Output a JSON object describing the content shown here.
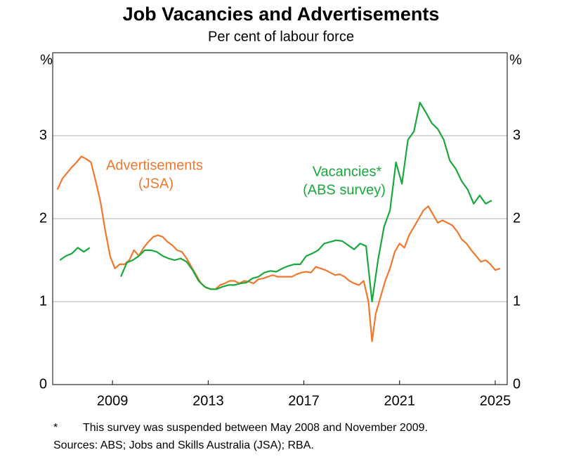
{
  "chart_data": {
    "type": "line",
    "title": "Job Vacancies and Advertisements",
    "subtitle": "Per cent of labour force",
    "y_label": "%",
    "y2_label": "%",
    "xlim": [
      2007,
      2026
    ],
    "xticks": [
      {
        "value": 2009.5,
        "label": "2009"
      },
      {
        "value": 2013.5,
        "label": "2013"
      },
      {
        "value": 2017.5,
        "label": "2017"
      },
      {
        "value": 2021.5,
        "label": "2021"
      },
      {
        "value": 2025.5,
        "label": "2025"
      }
    ],
    "ylim": [
      0,
      4
    ],
    "yticks": [
      0,
      1,
      2,
      3
    ],
    "y2lim": [
      0,
      4
    ],
    "y2ticks": [
      0,
      1,
      2,
      3
    ],
    "grid": true,
    "series": [
      {
        "name": "Advertisements",
        "color": "#f0782d",
        "x": [
          2007.2,
          2007.4,
          2007.6,
          2007.8,
          2008.0,
          2008.2,
          2008.4,
          2008.6,
          2008.8,
          2009.0,
          2009.2,
          2009.4,
          2009.6,
          2009.8,
          2010.0,
          2010.2,
          2010.4,
          2010.6,
          2010.8,
          2011.0,
          2011.2,
          2011.4,
          2011.6,
          2011.8,
          2012.0,
          2012.2,
          2012.4,
          2012.6,
          2012.8,
          2013.0,
          2013.2,
          2013.4,
          2013.6,
          2013.8,
          2014.0,
          2014.2,
          2014.4,
          2014.6,
          2014.8,
          2015.0,
          2015.2,
          2015.4,
          2015.6,
          2015.8,
          2016.0,
          2016.2,
          2016.4,
          2016.6,
          2016.8,
          2017.0,
          2017.2,
          2017.4,
          2017.6,
          2017.8,
          2018.0,
          2018.2,
          2018.4,
          2018.6,
          2018.8,
          2019.0,
          2019.2,
          2019.4,
          2019.6,
          2019.8,
          2020.0,
          2020.2,
          2020.35,
          2020.5,
          2020.7,
          2020.9,
          2021.1,
          2021.3,
          2021.5,
          2021.7,
          2021.9,
          2022.1,
          2022.3,
          2022.5,
          2022.7,
          2022.9,
          2023.1,
          2023.3,
          2023.5,
          2023.7,
          2023.9,
          2024.1,
          2024.3,
          2024.5,
          2024.7,
          2024.9,
          2025.1,
          2025.3,
          2025.5,
          2025.7
        ],
        "values": [
          2.35,
          2.48,
          2.55,
          2.62,
          2.68,
          2.75,
          2.72,
          2.68,
          2.45,
          2.2,
          1.85,
          1.55,
          1.4,
          1.45,
          1.45,
          1.5,
          1.62,
          1.55,
          1.65,
          1.72,
          1.78,
          1.8,
          1.78,
          1.72,
          1.68,
          1.62,
          1.6,
          1.52,
          1.42,
          1.32,
          1.22,
          1.17,
          1.15,
          1.15,
          1.2,
          1.22,
          1.25,
          1.25,
          1.22,
          1.25,
          1.24,
          1.22,
          1.27,
          1.28,
          1.3,
          1.32,
          1.3,
          1.3,
          1.3,
          1.3,
          1.33,
          1.35,
          1.36,
          1.35,
          1.42,
          1.4,
          1.38,
          1.35,
          1.32,
          1.33,
          1.3,
          1.25,
          1.22,
          1.2,
          1.25,
          1.0,
          0.52,
          0.85,
          1.05,
          1.25,
          1.4,
          1.6,
          1.7,
          1.65,
          1.8,
          1.9,
          2.0,
          2.1,
          2.15,
          2.05,
          1.95,
          1.98,
          1.95,
          1.92,
          1.85,
          1.75,
          1.7,
          1.62,
          1.55,
          1.48,
          1.5,
          1.45,
          1.38,
          1.4
        ]
      },
      {
        "name": "Vacancies*",
        "color": "#1aa83c",
        "x": [
          2007.3,
          2007.55,
          2007.8,
          2008.05,
          2008.3,
          2008.55,
          2009.2,
          2009.85,
          2010.1,
          2010.35,
          2010.6,
          2010.85,
          2011.1,
          2011.35,
          2011.6,
          2011.85,
          2012.1,
          2012.35,
          2012.6,
          2012.85,
          2013.1,
          2013.35,
          2013.6,
          2013.85,
          2014.1,
          2014.35,
          2014.6,
          2014.85,
          2015.1,
          2015.35,
          2015.6,
          2015.85,
          2016.1,
          2016.35,
          2016.6,
          2016.85,
          2017.1,
          2017.35,
          2017.6,
          2017.85,
          2018.1,
          2018.35,
          2018.6,
          2018.85,
          2019.1,
          2019.35,
          2019.6,
          2019.85,
          2020.1,
          2020.35,
          2020.6,
          2020.85,
          2021.1,
          2021.35,
          2021.6,
          2021.85,
          2022.1,
          2022.35,
          2022.6,
          2022.85,
          2023.1,
          2023.35,
          2023.6,
          2023.85,
          2024.1,
          2024.35,
          2024.6,
          2024.85,
          2025.1,
          2025.35
        ],
        "values": [
          1.5,
          1.55,
          1.58,
          1.65,
          1.6,
          1.65,
          null,
          1.3,
          1.47,
          1.5,
          1.55,
          1.62,
          1.62,
          1.6,
          1.55,
          1.52,
          1.5,
          1.52,
          1.48,
          1.38,
          1.25,
          1.18,
          1.15,
          1.15,
          1.18,
          1.2,
          1.2,
          1.22,
          1.23,
          1.28,
          1.3,
          1.35,
          1.37,
          1.36,
          1.4,
          1.43,
          1.45,
          1.45,
          1.55,
          1.58,
          1.62,
          1.7,
          1.72,
          1.74,
          1.73,
          1.68,
          1.63,
          1.7,
          1.67,
          1.0,
          1.5,
          1.9,
          2.1,
          2.68,
          2.42,
          2.95,
          3.05,
          3.4,
          3.28,
          3.15,
          3.08,
          2.95,
          2.7,
          2.6,
          2.45,
          2.35,
          2.18,
          2.28,
          2.18,
          2.22
        ]
      }
    ],
    "annotations": [
      "Advertisements",
      "(JSA)",
      "Vacancies*",
      "(ABS survey)"
    ],
    "footnote": {
      "marker": "*",
      "text": "This survey was suspended between May 2008 and November 2009."
    },
    "source": "Sources: ABS; Jobs and Skills Australia (JSA); RBA."
  }
}
